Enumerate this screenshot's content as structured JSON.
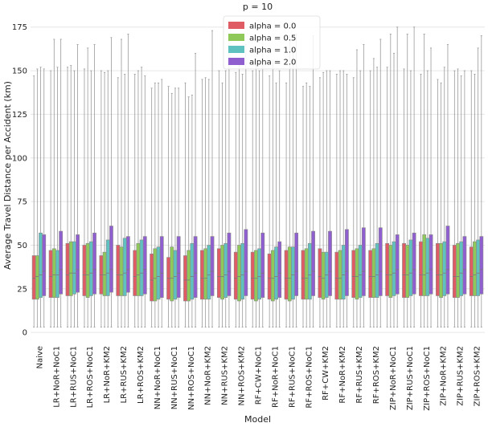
{
  "chart_data": {
    "type": "boxplot",
    "title": "p = 10",
    "xlabel": "Model",
    "ylabel": "Average Travel Distance per Accident (km)",
    "ylim": [
      -5,
      185
    ],
    "yticks": [
      0,
      25,
      50,
      75,
      100,
      125,
      150,
      175
    ],
    "grid": "horizontal",
    "legend_position": "top-center",
    "categories": [
      "Naive",
      "LR+NoR+NoC1",
      "LR+RUS+NoC1",
      "LR+ROS+NoC1",
      "LR+NoR+KM2",
      "LR+RUS+KM2",
      "LR+ROS+KM2",
      "NN+NoR+NoC1",
      "NN+RUS+NoC1",
      "NN+ROS+NoC1",
      "NN+NoR+KM2",
      "NN+RUS+KM2",
      "NN+ROS+KM2",
      "RF+CW+NoC1",
      "RF+NoR+NoC1",
      "RF+RUS+NoC1",
      "RF+ROS+NoC1",
      "RF+CW+KM2",
      "RF+NoR+KM2",
      "RF+RUS+KM2",
      "RF+ROS+KM2",
      "ZIP+NoR+NoC1",
      "ZIP+RUS+NoC1",
      "ZIP+ROS+NoC1",
      "ZIP+NoR+KM2",
      "ZIP+RUS+KM2",
      "ZIP+ROS+KM2"
    ],
    "series": [
      {
        "name": "alpha = 0.0",
        "color": "#e05c64",
        "q1": [
          19,
          20,
          21,
          21,
          22,
          21,
          21,
          18,
          19,
          18,
          19,
          20,
          19,
          19,
          19,
          19,
          19,
          20,
          19,
          20,
          20,
          21,
          20,
          21,
          21,
          20,
          21
        ],
        "q3": [
          44,
          47,
          51,
          50,
          44,
          50,
          47,
          45,
          43,
          44,
          47,
          48,
          46,
          46,
          45,
          47,
          47,
          48,
          46,
          47,
          47,
          51,
          51,
          52,
          51,
          50,
          49
        ],
        "median": [
          31,
          32,
          33,
          33,
          33,
          33,
          32,
          30,
          31,
          30,
          31,
          32,
          31,
          31,
          31,
          31,
          31,
          32,
          31,
          32,
          32,
          33,
          33,
          33,
          33,
          32,
          32
        ],
        "min": [
          3,
          3,
          3,
          3,
          3,
          3,
          3,
          3,
          3,
          3,
          3,
          3,
          3,
          3,
          3,
          3,
          3,
          3,
          3,
          3,
          3,
          3,
          3,
          3,
          3,
          3,
          3
        ],
        "max": [
          147,
          150,
          152,
          151,
          150,
          146,
          148,
          140,
          141,
          143,
          145,
          150,
          149,
          150,
          147,
          143,
          141,
          146,
          148,
          146,
          150,
          152,
          151,
          148,
          145,
          150,
          150
        ]
      },
      {
        "name": "alpha = 0.5",
        "color": "#8fc95a",
        "q1": [
          19,
          20,
          21,
          20,
          21,
          21,
          21,
          18,
          18,
          18,
          19,
          19,
          18,
          18,
          18,
          18,
          19,
          19,
          19,
          19,
          20,
          20,
          20,
          21,
          20,
          20,
          21
        ],
        "q3": [
          44,
          48,
          52,
          51,
          46,
          49,
          51,
          48,
          49,
          47,
          48,
          50,
          50,
          47,
          47,
          49,
          48,
          46,
          47,
          48,
          48,
          50,
          50,
          56,
          51,
          51,
          52
        ],
        "median": [
          32,
          33,
          34,
          33,
          33,
          33,
          33,
          31,
          31,
          30,
          31,
          32,
          32,
          31,
          31,
          31,
          31,
          31,
          31,
          32,
          32,
          33,
          33,
          33,
          33,
          32,
          33
        ],
        "min": [
          3,
          3,
          3,
          3,
          3,
          3,
          3,
          3,
          3,
          3,
          3,
          3,
          3,
          3,
          3,
          3,
          3,
          3,
          3,
          3,
          3,
          3,
          3,
          3,
          3,
          3,
          3
        ],
        "max": [
          151,
          168,
          153,
          163,
          149,
          168,
          150,
          143,
          137,
          135,
          146,
          143,
          155,
          153,
          156,
          170,
          143,
          149,
          150,
          162,
          157,
          171,
          171,
          171,
          143,
          151,
          148
        ]
      },
      {
        "name": "alpha = 1.0",
        "color": "#5fc2c0",
        "q1": [
          20,
          20,
          22,
          21,
          21,
          21,
          21,
          19,
          19,
          19,
          19,
          20,
          19,
          19,
          19,
          19,
          19,
          20,
          19,
          20,
          20,
          21,
          21,
          21,
          21,
          21,
          21
        ],
        "q3": [
          57,
          47,
          52,
          52,
          53,
          54,
          53,
          49,
          47,
          51,
          50,
          51,
          51,
          48,
          49,
          49,
          51,
          46,
          50,
          50,
          51,
          52,
          53,
          54,
          52,
          52,
          53
        ],
        "median": [
          33,
          33,
          34,
          34,
          34,
          34,
          34,
          32,
          32,
          32,
          33,
          33,
          33,
          32,
          32,
          33,
          33,
          33,
          33,
          33,
          33,
          34,
          34,
          34,
          34,
          34,
          34
        ],
        "min": [
          3,
          3,
          3,
          3,
          3,
          3,
          3,
          3,
          3,
          3,
          3,
          3,
          3,
          3,
          3,
          3,
          3,
          3,
          3,
          3,
          3,
          3,
          3,
          3,
          3,
          3,
          3
        ],
        "max": [
          152,
          152,
          150,
          150,
          150,
          148,
          152,
          143,
          140,
          136,
          145,
          150,
          148,
          150,
          143,
          160,
          141,
          150,
          150,
          150,
          152,
          160,
          150,
          150,
          152,
          147,
          163
        ]
      },
      {
        "name": "alpha = 2.0",
        "color": "#8f5fd0",
        "q1": [
          21,
          22,
          23,
          22,
          23,
          23,
          22,
          20,
          20,
          20,
          21,
          21,
          21,
          20,
          20,
          21,
          21,
          21,
          21,
          21,
          21,
          22,
          22,
          22,
          22,
          22,
          22
        ],
        "q3": [
          56,
          58,
          56,
          57,
          61,
          55,
          55,
          55,
          55,
          55,
          55,
          57,
          59,
          57,
          52,
          57,
          58,
          58,
          59,
          60,
          60,
          56,
          57,
          56,
          61,
          55,
          55
        ],
        "median": [
          35,
          36,
          36,
          36,
          36,
          36,
          36,
          34,
          34,
          34,
          35,
          35,
          35,
          34,
          34,
          35,
          35,
          35,
          35,
          35,
          35,
          36,
          36,
          36,
          36,
          36,
          36
        ],
        "min": [
          3,
          3,
          3,
          3,
          3,
          3,
          3,
          3,
          3,
          3,
          3,
          3,
          3,
          3,
          3,
          3,
          3,
          3,
          3,
          3,
          3,
          3,
          3,
          3,
          3,
          3,
          3
        ],
        "max": [
          151,
          168,
          165,
          165,
          169,
          171,
          147,
          145,
          140,
          160,
          173,
          168,
          165,
          170,
          150,
          171,
          170,
          150,
          148,
          165,
          168,
          175,
          175,
          163,
          165,
          150,
          170
        ]
      }
    ]
  }
}
